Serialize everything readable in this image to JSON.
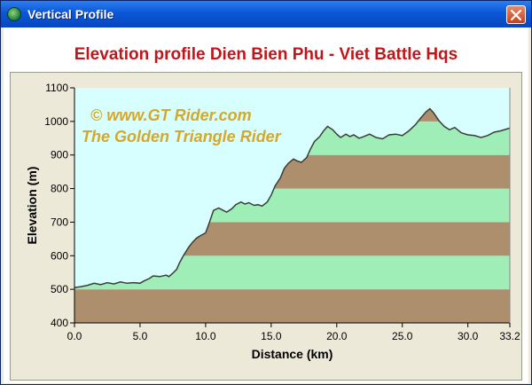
{
  "window": {
    "title": "Vertical Profile",
    "icon": "globe-icon",
    "close_icon": "close-icon"
  },
  "heading": "Elevation profile Dien Bien Phu - Viet Battle Hqs",
  "watermark": {
    "line1": "©  www.GT Rider.com",
    "line2": "The Golden Triangle Rider"
  },
  "colors": {
    "title_red": "#c0161b",
    "band_brown": "#ad8f6e",
    "band_green": "#9fedb7",
    "sky": "#d8ffff",
    "watermark": "#d4a82c"
  },
  "chart_data": {
    "type": "area",
    "title": "Elevation profile Dien Bien Phu - Viet Battle Hqs",
    "xlabel": "Distance  (km)",
    "ylabel": "Elevation (m)",
    "xlim": [
      0,
      33.2
    ],
    "ylim": [
      400,
      1100
    ],
    "xticks": [
      "0.0",
      "5.0",
      "10.0",
      "15.0",
      "20.0",
      "25.0",
      "30.0",
      "33.2"
    ],
    "xtick_values": [
      0,
      5,
      10,
      15,
      20,
      25,
      30,
      33.2
    ],
    "yticks": [
      "400",
      "500",
      "600",
      "700",
      "800",
      "900",
      "1000",
      "1100"
    ],
    "ytick_values": [
      400,
      500,
      600,
      700,
      800,
      900,
      1000,
      1100
    ],
    "bands": [
      {
        "from": 400,
        "to": 500,
        "color": "brown"
      },
      {
        "from": 500,
        "to": 600,
        "color": "green"
      },
      {
        "from": 600,
        "to": 700,
        "color": "brown"
      },
      {
        "from": 700,
        "to": 800,
        "color": "green"
      },
      {
        "from": 800,
        "to": 900,
        "color": "brown"
      },
      {
        "from": 900,
        "to": 1000,
        "color": "green"
      }
    ],
    "series": [
      {
        "x": [
          0,
          0.5,
          1.0,
          1.5,
          2.0,
          2.5,
          3.0,
          3.5,
          4.0,
          4.5,
          5.0,
          5.3,
          5.7,
          6.0,
          6.5,
          7.0,
          7.2,
          7.5,
          7.8,
          8.0,
          8.3,
          8.7,
          9.0,
          9.3,
          9.6,
          10.0,
          10.3,
          10.6,
          11.0,
          11.3,
          11.6,
          12.0,
          12.3,
          12.7,
          13.0,
          13.3,
          13.7,
          14.0,
          14.3,
          14.7,
          15.0,
          15.3,
          15.7,
          16.0,
          16.3,
          16.7,
          17.0,
          17.3,
          17.7,
          18.0,
          18.3,
          18.7,
          19.0,
          19.3,
          19.7,
          20.0,
          20.3,
          20.7,
          21.0,
          21.3,
          21.7,
          22.0,
          22.5,
          23.0,
          23.5,
          24.0,
          24.5,
          25.0,
          25.5,
          26.0,
          26.4,
          26.8,
          27.1,
          27.4,
          27.8,
          28.2,
          28.6,
          29.0,
          29.5,
          30.0,
          30.5,
          31.0,
          31.5,
          32.0,
          32.5,
          33.2
        ],
        "y": [
          505,
          508,
          512,
          518,
          514,
          520,
          516,
          522,
          518,
          520,
          518,
          525,
          532,
          540,
          538,
          542,
          538,
          548,
          560,
          578,
          600,
          625,
          640,
          652,
          660,
          668,
          700,
          735,
          742,
          736,
          730,
          740,
          752,
          760,
          754,
          758,
          750,
          752,
          748,
          760,
          780,
          808,
          832,
          860,
          875,
          888,
          882,
          878,
          892,
          918,
          940,
          955,
          972,
          985,
          975,
          962,
          952,
          962,
          955,
          960,
          950,
          954,
          962,
          952,
          948,
          960,
          962,
          958,
          972,
          990,
          1010,
          1028,
          1038,
          1025,
          1002,
          985,
          975,
          982,
          966,
          960,
          958,
          952,
          958,
          968,
          972,
          980
        ]
      }
    ],
    "grid": false,
    "legend": "none"
  }
}
